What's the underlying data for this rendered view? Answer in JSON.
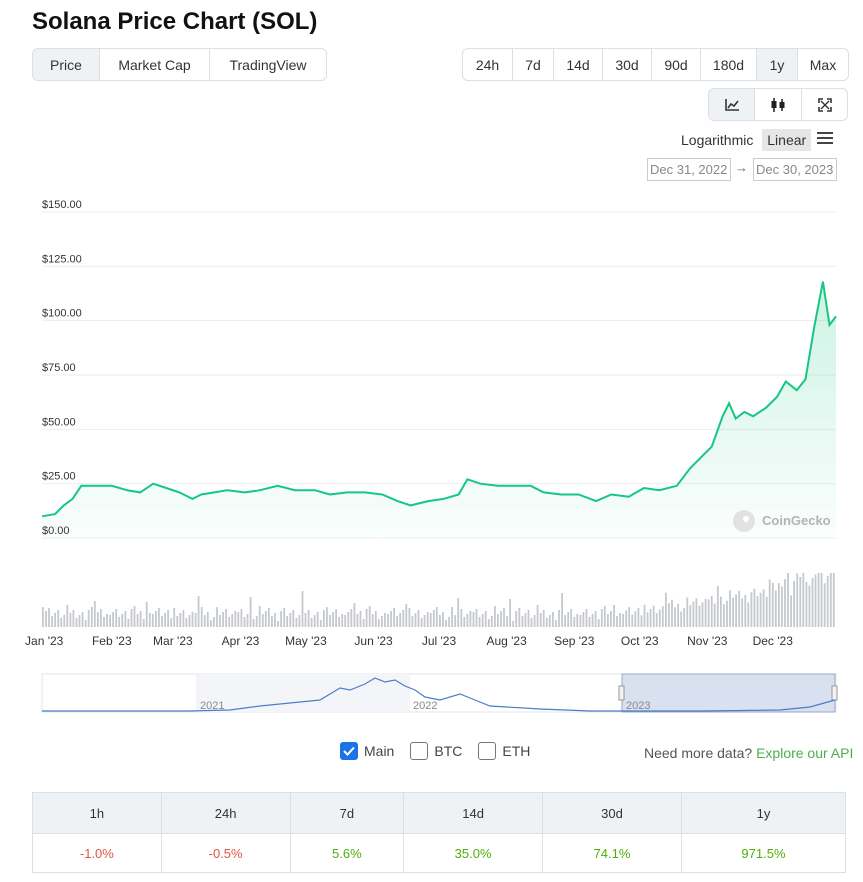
{
  "title": "Solana Price Chart (SOL)",
  "tabs": [
    {
      "label": "Price",
      "active": true
    },
    {
      "label": "Market Cap",
      "active": false
    },
    {
      "label": "TradingView",
      "active": false
    }
  ],
  "ranges": [
    {
      "label": "24h",
      "active": false
    },
    {
      "label": "7d",
      "active": false
    },
    {
      "label": "14d",
      "active": false
    },
    {
      "label": "30d",
      "active": false
    },
    {
      "label": "90d",
      "active": false
    },
    {
      "label": "180d",
      "active": false
    },
    {
      "label": "1y",
      "active": true
    },
    {
      "label": "Max",
      "active": false
    }
  ],
  "tools": [
    {
      "icon": "line-chart-icon",
      "active": true
    },
    {
      "icon": "candlestick-icon",
      "active": false
    },
    {
      "icon": "fullscreen-icon",
      "active": false
    }
  ],
  "scale": {
    "logarithmic": "Logarithmic",
    "linear": "Linear",
    "selected": "linear"
  },
  "date_range": {
    "from": "Dec 31, 2022",
    "to": "Dec 30, 2023",
    "arrow": "→"
  },
  "watermark": "CoinGecko",
  "colors": {
    "line": "#16c784",
    "volume": "#c5c9ce",
    "navigator": "#4a7ec7",
    "selection": "#c9d3ea"
  },
  "chart_data": {
    "type": "line",
    "y_ticks": [
      "$0.00",
      "$25.00",
      "$50.00",
      "$75.00",
      "$100.00",
      "$125.00",
      "$150.00"
    ],
    "ylim": [
      0,
      150
    ],
    "x_ticks": [
      "Jan '23",
      "Feb '23",
      "Mar '23",
      "Apr '23",
      "May '23",
      "Jun '23",
      "Jul '23",
      "Aug '23",
      "Sep '23",
      "Oct '23",
      "Nov '23",
      "Dec '23"
    ],
    "xlim": [
      "2022-12-31",
      "2023-12-30"
    ],
    "series": [
      {
        "points": [
          [
            "2022-12-31",
            10
          ],
          [
            "2023-01-06",
            11
          ],
          [
            "2023-01-10",
            15
          ],
          [
            "2023-01-14",
            18
          ],
          [
            "2023-01-18",
            24
          ],
          [
            "2023-01-25",
            24
          ],
          [
            "2023-02-01",
            24
          ],
          [
            "2023-02-08",
            22
          ],
          [
            "2023-02-14",
            21
          ],
          [
            "2023-02-20",
            25
          ],
          [
            "2023-02-26",
            23
          ],
          [
            "2023-03-04",
            21
          ],
          [
            "2023-03-10",
            18
          ],
          [
            "2023-03-14",
            20
          ],
          [
            "2023-03-20",
            21
          ],
          [
            "2023-03-26",
            22
          ],
          [
            "2023-04-03",
            21
          ],
          [
            "2023-04-10",
            22
          ],
          [
            "2023-04-18",
            24
          ],
          [
            "2023-04-26",
            22
          ],
          [
            "2023-05-05",
            22
          ],
          [
            "2023-05-12",
            20
          ],
          [
            "2023-05-20",
            21
          ],
          [
            "2023-05-28",
            21
          ],
          [
            "2023-06-05",
            20
          ],
          [
            "2023-06-12",
            17
          ],
          [
            "2023-06-18",
            15
          ],
          [
            "2023-06-26",
            17
          ],
          [
            "2023-07-03",
            18
          ],
          [
            "2023-07-10",
            20
          ],
          [
            "2023-07-14",
            27
          ],
          [
            "2023-07-20",
            25
          ],
          [
            "2023-07-28",
            24
          ],
          [
            "2023-08-05",
            24
          ],
          [
            "2023-08-12",
            24
          ],
          [
            "2023-08-18",
            21
          ],
          [
            "2023-08-26",
            20
          ],
          [
            "2023-09-03",
            20
          ],
          [
            "2023-09-11",
            17
          ],
          [
            "2023-09-18",
            20
          ],
          [
            "2023-09-26",
            19
          ],
          [
            "2023-10-03",
            23
          ],
          [
            "2023-10-10",
            22
          ],
          [
            "2023-10-18",
            24
          ],
          [
            "2023-10-24",
            32
          ],
          [
            "2023-10-30",
            38
          ],
          [
            "2023-11-03",
            42
          ],
          [
            "2023-11-08",
            56
          ],
          [
            "2023-11-11",
            62
          ],
          [
            "2023-11-14",
            55
          ],
          [
            "2023-11-18",
            58
          ],
          [
            "2023-11-22",
            56
          ],
          [
            "2023-11-28",
            60
          ],
          [
            "2023-12-03",
            65
          ],
          [
            "2023-12-07",
            72
          ],
          [
            "2023-12-12",
            68
          ],
          [
            "2023-12-16",
            73
          ],
          [
            "2023-12-20",
            97
          ],
          [
            "2023-12-24",
            118
          ],
          [
            "2023-12-27",
            98
          ],
          [
            "2023-12-30",
            102
          ]
        ]
      }
    ],
    "navigator": {
      "labels": [
        "2021",
        "2022",
        "2023"
      ],
      "selected": "2023"
    }
  },
  "toggles": [
    {
      "label": "Main",
      "checked": true
    },
    {
      "label": "BTC",
      "checked": false
    },
    {
      "label": "ETH",
      "checked": false
    }
  ],
  "api": {
    "prefix": "Need more data?",
    "link": "Explore our API"
  },
  "performance": {
    "headers": [
      "1h",
      "24h",
      "7d",
      "14d",
      "30d",
      "1y"
    ],
    "values": [
      {
        "text": "-1.0%",
        "dir": "neg"
      },
      {
        "text": "-0.5%",
        "dir": "neg"
      },
      {
        "text": "5.6%",
        "dir": "pos"
      },
      {
        "text": "35.0%",
        "dir": "pos"
      },
      {
        "text": "74.1%",
        "dir": "pos"
      },
      {
        "text": "971.5%",
        "dir": "pos"
      }
    ]
  }
}
